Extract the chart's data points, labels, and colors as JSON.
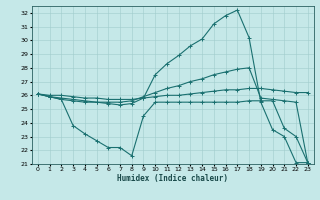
{
  "xlabel": "Humidex (Indice chaleur)",
  "bg_color": "#c5e8e8",
  "grid_color": "#a0cccc",
  "line_color": "#1a7070",
  "xlim": [
    -0.5,
    23.5
  ],
  "ylim": [
    21,
    32.5
  ],
  "xticks": [
    0,
    1,
    2,
    3,
    4,
    5,
    6,
    7,
    8,
    9,
    10,
    11,
    12,
    13,
    14,
    15,
    16,
    17,
    18,
    19,
    20,
    21,
    22,
    23
  ],
  "yticks": [
    21,
    22,
    23,
    24,
    25,
    26,
    27,
    28,
    29,
    30,
    31,
    32
  ],
  "line_peak": {
    "x": [
      0,
      1,
      2,
      3,
      4,
      5,
      6,
      7,
      8,
      9,
      10,
      11,
      12,
      13,
      14,
      15,
      16,
      17,
      18,
      19,
      20,
      21,
      22,
      23
    ],
    "y": [
      26.1,
      25.9,
      25.7,
      25.6,
      25.5,
      25.5,
      25.4,
      25.3,
      25.4,
      25.8,
      27.5,
      28.3,
      28.9,
      29.6,
      30.1,
      31.2,
      31.8,
      32.2,
      30.2,
      25.5,
      23.5,
      23.0,
      21.1,
      21.1
    ]
  },
  "line_grad": {
    "x": [
      0,
      1,
      2,
      3,
      4,
      5,
      6,
      7,
      8,
      9,
      10,
      11,
      12,
      13,
      14,
      15,
      16,
      17,
      18,
      19,
      20,
      21,
      22,
      23
    ],
    "y": [
      26.1,
      25.9,
      25.8,
      25.7,
      25.6,
      25.5,
      25.5,
      25.5,
      25.6,
      25.9,
      26.2,
      26.5,
      26.7,
      27.0,
      27.2,
      27.5,
      27.7,
      27.9,
      28.0,
      25.8,
      25.7,
      25.6,
      25.5,
      21.1
    ]
  },
  "line_flat": {
    "x": [
      0,
      1,
      2,
      3,
      4,
      5,
      6,
      7,
      8,
      9,
      10,
      11,
      12,
      13,
      14,
      15,
      16,
      17,
      18,
      19,
      20,
      21,
      22,
      23
    ],
    "y": [
      26.1,
      26.0,
      26.0,
      25.9,
      25.8,
      25.8,
      25.7,
      25.7,
      25.7,
      25.8,
      25.9,
      26.0,
      26.0,
      26.1,
      26.2,
      26.3,
      26.4,
      26.4,
      26.5,
      26.5,
      26.4,
      26.3,
      26.2,
      26.2
    ]
  },
  "line_dip": {
    "x": [
      0,
      1,
      2,
      3,
      4,
      5,
      6,
      7,
      8,
      9,
      10,
      11,
      12,
      13,
      14,
      15,
      16,
      17,
      18,
      19,
      20,
      21,
      22,
      23
    ],
    "y": [
      26.1,
      25.9,
      25.7,
      23.8,
      23.2,
      22.7,
      22.2,
      22.2,
      21.6,
      24.5,
      25.5,
      25.5,
      25.5,
      25.5,
      25.5,
      25.5,
      25.5,
      25.5,
      25.6,
      25.6,
      25.6,
      23.6,
      23.0,
      21.1
    ]
  }
}
